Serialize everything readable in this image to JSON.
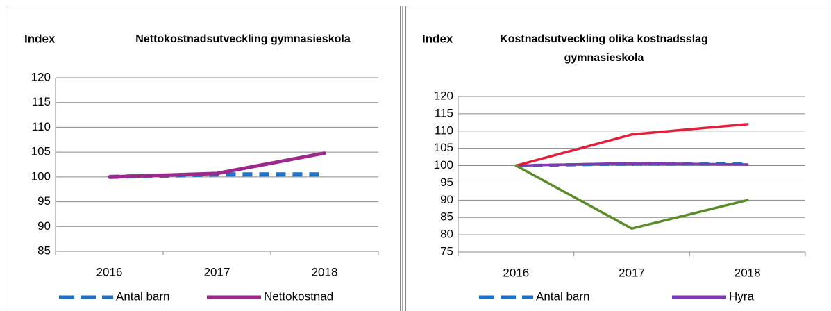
{
  "chart_data": [
    {
      "type": "line",
      "title": "Nettokostnadsutveckling gymnasieskola",
      "ylabel": "Index",
      "categories": [
        "2016",
        "2017",
        "2018"
      ],
      "ylim": [
        85,
        120
      ],
      "yticks": [
        85,
        90,
        95,
        100,
        105,
        110,
        115,
        120
      ],
      "grid": true,
      "series": [
        {
          "name": "Antal barn",
          "color": "#1f6fc5",
          "dashed": true,
          "values": [
            100,
            100.5,
            100.5
          ]
        },
        {
          "name": "Nettokostnad",
          "color": "#9b2a8a",
          "values": [
            100,
            100.7,
            104.8
          ]
        }
      ]
    },
    {
      "type": "line",
      "title": "Kostnadsutveckling olika kostnadsslag gymnasieskola",
      "ylabel": "Index",
      "categories": [
        "2016",
        "2017",
        "2018"
      ],
      "ylim": [
        75,
        120
      ],
      "yticks": [
        75,
        80,
        85,
        90,
        95,
        100,
        105,
        110,
        115,
        120
      ],
      "grid": true,
      "series": [
        {
          "name": "Antal barn",
          "color": "#1f6fc5",
          "dashed": true,
          "values": [
            100,
            100.5,
            100.5
          ]
        },
        {
          "name": "Hyra",
          "color": "#7a3cb0",
          "values": [
            100,
            100.7,
            100.3
          ]
        },
        {
          "color": "#e3203c",
          "values": [
            100,
            109,
            112
          ]
        },
        {
          "color": "#5a8c2a",
          "values": [
            100,
            81.8,
            90
          ]
        }
      ]
    }
  ]
}
